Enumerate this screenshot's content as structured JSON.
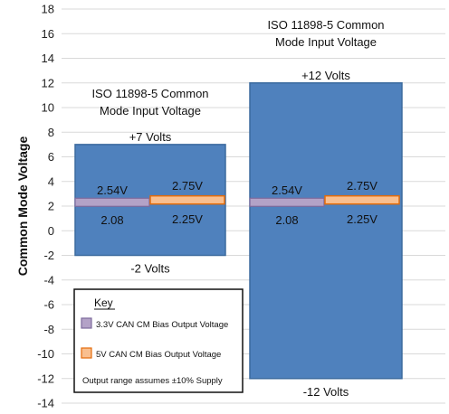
{
  "chart_data": {
    "type": "range-bar",
    "ylabel": "Common Mode Voltage",
    "ylim": [
      -14,
      18
    ],
    "yticks": [
      -14,
      -12,
      -10,
      -8,
      -6,
      -4,
      -2,
      0,
      2,
      4,
      6,
      8,
      10,
      12,
      14,
      16,
      18
    ],
    "grid": true,
    "colors": {
      "range": "#4f81bd",
      "range_border": "#3b6a9e",
      "bias_3v3": "#b3a2c7",
      "bias_3v3_border": "#7d6a9c",
      "bias_5v": "#f9bf8f",
      "bias_5v_border": "#e46c0a",
      "grid": "#d9d9d9"
    },
    "groups": [
      {
        "name": "ISO 11898-5 Common Mode Input Voltage",
        "title_lines": [
          "ISO 11898-5 Common",
          "Mode Input Voltage"
        ],
        "range": {
          "min": -2,
          "max": 7,
          "max_label": "+7 Volts",
          "min_label": "-2 Volts"
        },
        "bias_3v3": {
          "low": 2.08,
          "high": 2.54,
          "low_label": "2.08",
          "high_label": "2.54V"
        },
        "bias_5v": {
          "low": 2.25,
          "high": 2.75,
          "low_label": "2.25V",
          "high_label": "2.75V"
        }
      },
      {
        "name": "ISO 11898-5 Common Mode Input Voltage",
        "title_lines": [
          "ISO 11898-5 Common",
          "Mode Input Voltage"
        ],
        "range": {
          "min": -12,
          "max": 12,
          "max_label": "+12 Volts",
          "min_label": "-12 Volts"
        },
        "bias_3v3": {
          "low": 2.08,
          "high": 2.54,
          "low_label": "2.08",
          "high_label": "2.54V"
        },
        "bias_5v": {
          "low": 2.25,
          "high": 2.75,
          "low_label": "2.25V",
          "high_label": "2.75V"
        }
      }
    ],
    "legend": {
      "title": "Key",
      "placement": "bottom-left",
      "entries": [
        {
          "label": "3.3V CAN CM Bias Output Voltage",
          "series": "bias_3v3"
        },
        {
          "label": "5V CAN CM Bias Output Voltage",
          "series": "bias_5v"
        }
      ],
      "note": "Output range assumes ±10% Supply"
    }
  }
}
